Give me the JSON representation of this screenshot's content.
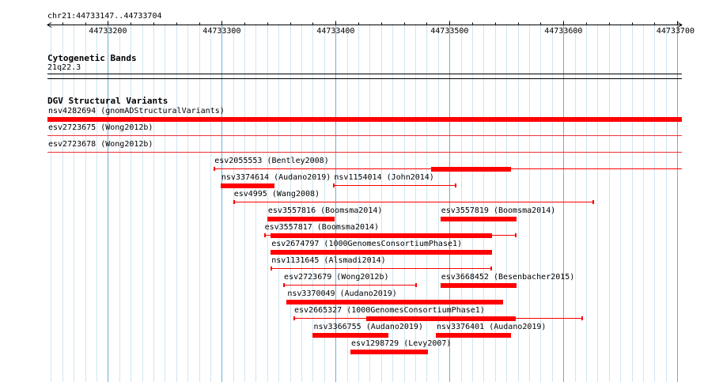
{
  "region": {
    "label": "chr21:44733147..44733704",
    "start": 44733147,
    "end": 44733704
  },
  "ruler": {
    "ticks": [
      "44733200",
      "44733300",
      "44733400",
      "44733500",
      "44733600",
      "44733700"
    ]
  },
  "cytoband_track": {
    "title": "Cytogenetic Bands",
    "band": "21q22.3"
  },
  "dgv_track": {
    "title": "DGV Structural Variants",
    "features": [
      {
        "label": "nsv4282694 (gnomADStructuralVariants)",
        "start": 44733147,
        "end": 44733704,
        "thick": [
          [
            44733147,
            44733704
          ]
        ]
      },
      {
        "label": "esv2723675 (Wong2012b)",
        "start": 44733147,
        "end": 44733704,
        "thick": []
      },
      {
        "label": "esv2723678 (Wong2012b)",
        "start": 44733147,
        "end": 44733704,
        "thick": []
      },
      {
        "label": "esv2055553 (Bentley2008)",
        "start": 44733293,
        "end": 44733704,
        "thick": [
          [
            44733484,
            44733554
          ]
        ]
      },
      {
        "label": "nsv3374614 (Audano2019)",
        "start": 44733299,
        "end": 44733346,
        "thick": [
          [
            44733299,
            44733346
          ]
        ]
      },
      {
        "label": "nsv1154014 (John2014)",
        "start": 44733398,
        "end": 44733506,
        "thick": []
      },
      {
        "label": "esv4995 (Wang2008)",
        "start": 44733310,
        "end": 44733627,
        "thick": []
      },
      {
        "label": "esv3557816 (Boomsma2014)",
        "start": 44733340,
        "end": 44733399,
        "thick": [
          [
            44733340,
            44733399
          ]
        ]
      },
      {
        "label": "esv3557819 (Boomsma2014)",
        "start": 44733492,
        "end": 44733559,
        "thick": [
          [
            44733492,
            44733559
          ]
        ]
      },
      {
        "label": "esv3557817 (Boomsma2014)",
        "start": 44733337,
        "end": 44733559,
        "thick": [
          [
            44733343,
            44733537
          ]
        ]
      },
      {
        "label": "esv2674797 (1000GenomesConsortiumPhase1)",
        "start": 44733343,
        "end": 44733537,
        "thick": [
          [
            44733343,
            44733537
          ]
        ]
      },
      {
        "label": "nsv1131645 (Alsmadi2014)",
        "start": 44733343,
        "end": 44733537,
        "thick": []
      },
      {
        "label": "esv2723679 (Wong2012b)",
        "start": 44733354,
        "end": 44733471,
        "thick": []
      },
      {
        "label": "esv3668452 (Besenbacher2015)",
        "start": 44733492,
        "end": 44733559,
        "thick": [
          [
            44733492,
            44733559
          ]
        ]
      },
      {
        "label": "nsv3370049 (Audano2019)",
        "start": 44733357,
        "end": 44733547,
        "thick": [
          [
            44733357,
            44733547
          ]
        ]
      },
      {
        "label": "esv2665327 (1000GenomesConsortiumPhase1)",
        "start": 44733363,
        "end": 44733617,
        "thick": [
          [
            44733427,
            44733558
          ]
        ]
      },
      {
        "label": "nsv3366755 (Audano2019)",
        "start": 44733380,
        "end": 44733446,
        "thick": [
          [
            44733380,
            44733446
          ]
        ]
      },
      {
        "label": "nsv3376401 (Audano2019)",
        "start": 44733488,
        "end": 44733554,
        "thick": [
          [
            44733488,
            44733554
          ]
        ]
      },
      {
        "label": "esv1298729 (Levy2007)",
        "start": 44733413,
        "end": 44733481,
        "thick": [
          [
            44733413,
            44733481
          ]
        ]
      }
    ]
  },
  "colors": {
    "variant": "#ff0000",
    "grid_major": "#6ab0d8",
    "grid_minor": "#cfe6f3"
  }
}
